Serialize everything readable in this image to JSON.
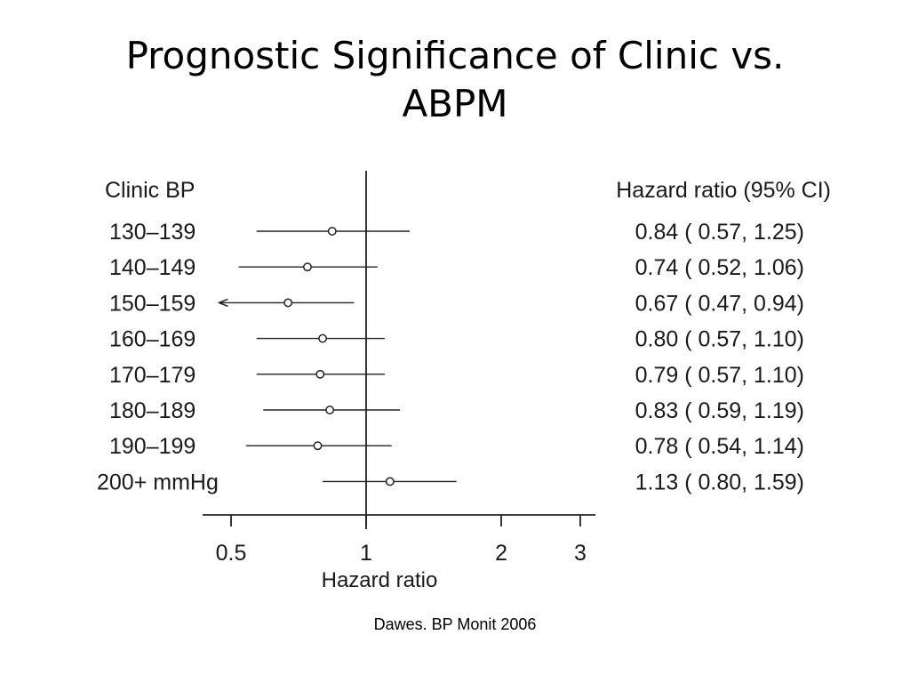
{
  "slide": {
    "title_line1": "Prognostic Significance of Clinic vs.",
    "title_line2": "ABPM",
    "caption": "Dawes.  BP Monit 2006"
  },
  "chart_data": {
    "type": "forest",
    "left_column_header": "Clinic BP",
    "right_column_header": "Hazard ratio (95% CI)",
    "xlabel": "Hazard ratio",
    "x_scale": "log",
    "reference_line": 1,
    "xlim": [
      0.42,
      3.0
    ],
    "x_ticks": [
      {
        "value": 0.5,
        "label": "0.5"
      },
      {
        "value": 1,
        "label": "1"
      },
      {
        "value": 2,
        "label": "2"
      },
      {
        "value": 3,
        "label": "3"
      }
    ],
    "rows": [
      {
        "category": "130–139",
        "hr": 0.84,
        "lo": 0.57,
        "hi": 1.25,
        "ci_label": "0.84 ( 0.57, 1.25)",
        "arrow_left": false
      },
      {
        "category": "140–149",
        "hr": 0.74,
        "lo": 0.52,
        "hi": 1.06,
        "ci_label": "0.74 ( 0.52, 1.06)",
        "arrow_left": false
      },
      {
        "category": "150–159",
        "hr": 0.67,
        "lo": 0.47,
        "hi": 0.94,
        "ci_label": "0.67 ( 0.47, 0.94)",
        "arrow_left": true
      },
      {
        "category": "160–169",
        "hr": 0.8,
        "lo": 0.57,
        "hi": 1.1,
        "ci_label": "0.80 ( 0.57, 1.10)",
        "arrow_left": false
      },
      {
        "category": "170–179",
        "hr": 0.79,
        "lo": 0.57,
        "hi": 1.1,
        "ci_label": "0.79 ( 0.57, 1.10)",
        "arrow_left": false
      },
      {
        "category": "180–189",
        "hr": 0.83,
        "lo": 0.59,
        "hi": 1.19,
        "ci_label": "0.83 ( 0.59, 1.19)",
        "arrow_left": false
      },
      {
        "category": "190–199",
        "hr": 0.78,
        "lo": 0.54,
        "hi": 1.14,
        "ci_label": "0.78 ( 0.54, 1.14)",
        "arrow_left": false
      },
      {
        "category": "200+ mmHg",
        "hr": 1.13,
        "lo": 0.8,
        "hi": 1.59,
        "ci_label": "1.13 ( 0.80, 1.59)",
        "arrow_left": false
      }
    ]
  }
}
